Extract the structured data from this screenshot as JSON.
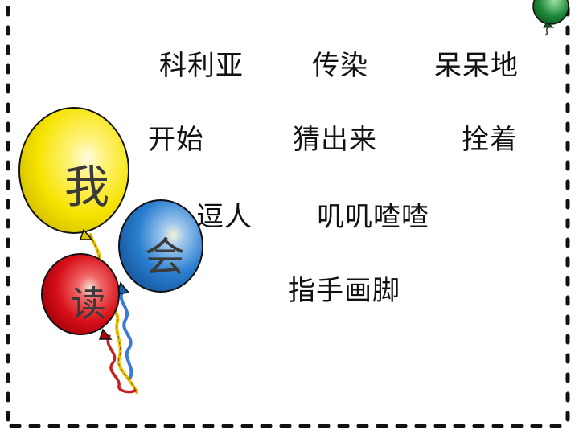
{
  "words": [
    {
      "text": "科利亚"
    },
    {
      "text": "传染"
    },
    {
      "text": "呆呆地"
    },
    {
      "text": "开始"
    },
    {
      "text": "猜出来"
    },
    {
      "text": "拴着"
    },
    {
      "text": "逗人"
    },
    {
      "text": "叽叽喳喳"
    },
    {
      "text": "指手画脚"
    }
  ],
  "balloons": {
    "yellow": {
      "char": "我",
      "color": "#f5e400"
    },
    "blue": {
      "char": "会",
      "color": "#2a7fd0"
    },
    "red": {
      "char": "读",
      "color": "#d8101a"
    },
    "green": {
      "color": "#1f8a3a"
    }
  },
  "border": {
    "color": "#111111"
  }
}
